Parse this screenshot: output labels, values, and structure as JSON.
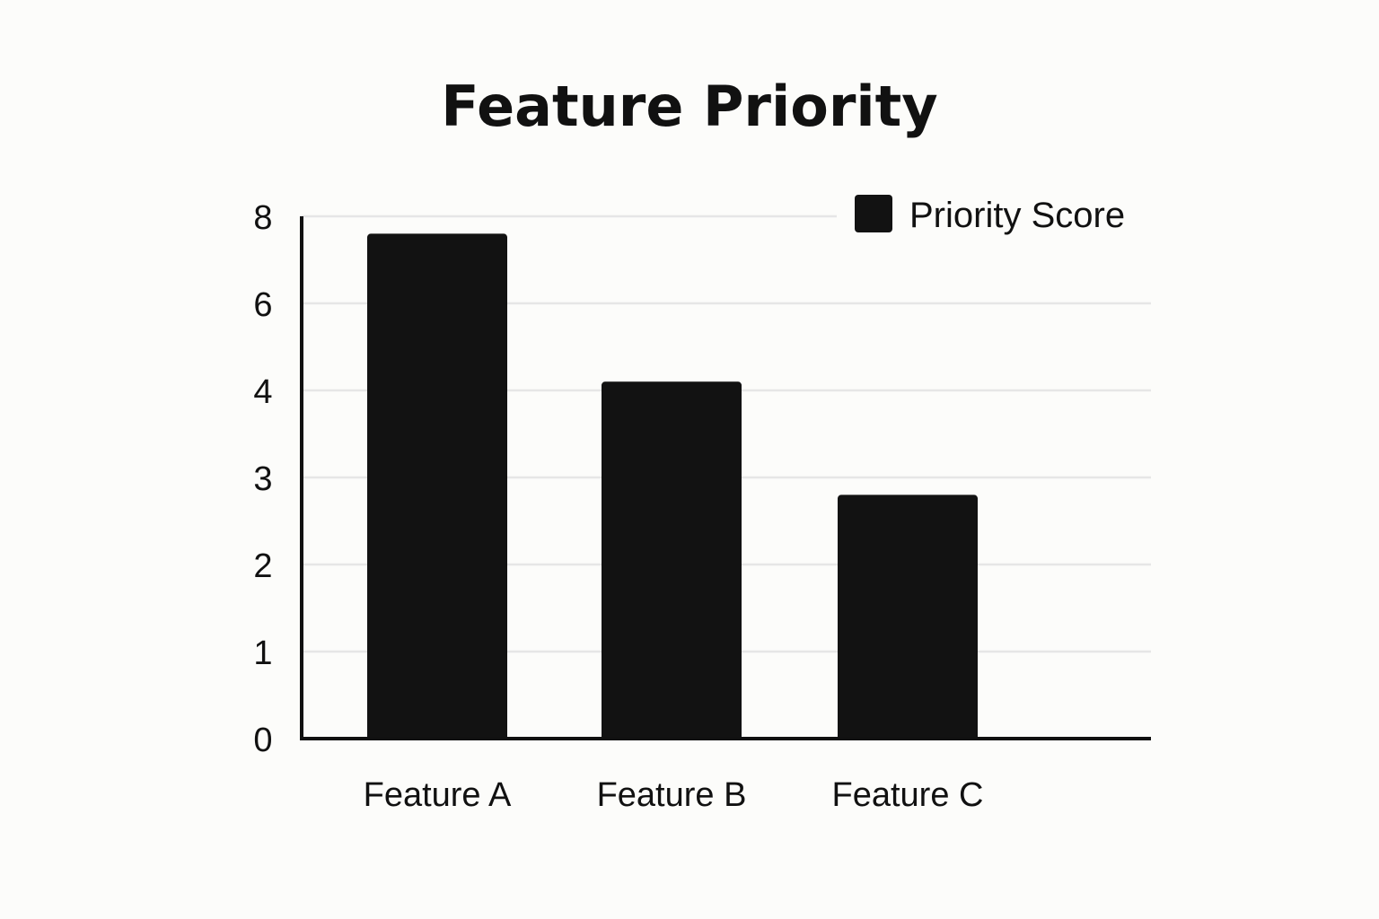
{
  "chart_data": {
    "type": "bar",
    "title": "Feature Priority",
    "categories": [
      "Feature A",
      "Feature B",
      "Feature C"
    ],
    "series": [
      {
        "name": "Priority Score",
        "values": [
          7.6,
          4.2,
          2.8
        ]
      }
    ],
    "y_ticks": [
      {
        "label": "0",
        "level": 0
      },
      {
        "label": "1",
        "level": 1
      },
      {
        "label": "2",
        "level": 2
      },
      {
        "label": "3",
        "level": 3
      },
      {
        "label": "4",
        "level": 4
      },
      {
        "label": "6",
        "level": 5
      },
      {
        "label": "8",
        "level": 6
      }
    ],
    "xlabel": "",
    "ylabel": "",
    "grid": true,
    "legend_position": "top-right",
    "colors": {
      "bar": "#121212",
      "axis": "#111111",
      "grid": "#e6e6e6",
      "text": "#111111",
      "background": "#fcfcfa"
    }
  }
}
